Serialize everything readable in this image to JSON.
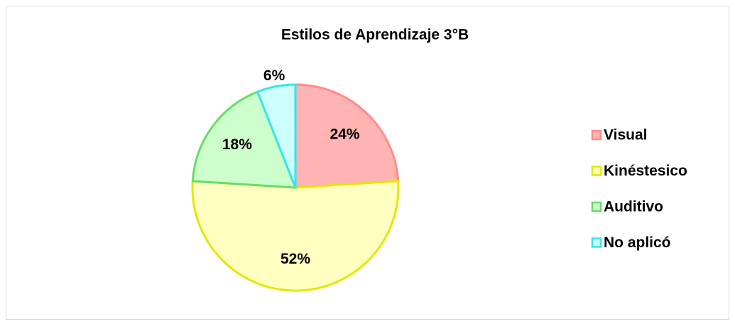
{
  "chart_data": {
    "type": "pie",
    "title": "Estilos de Aprendizaje 3°B",
    "categories": [
      "Visual",
      "Kinéstesico",
      "Auditivo",
      "No aplicó"
    ],
    "values": [
      24,
      52,
      18,
      6
    ],
    "value_labels": [
      "24%",
      "52%",
      "18%",
      "6%"
    ],
    "colors": [
      "#ffb3b3",
      "#ffffc0",
      "#ccffcc",
      "#ccffff"
    ],
    "edge_colors": [
      "#ff8c8c",
      "#e6e600",
      "#66dd66",
      "#33e6f0"
    ],
    "legend": "right"
  }
}
